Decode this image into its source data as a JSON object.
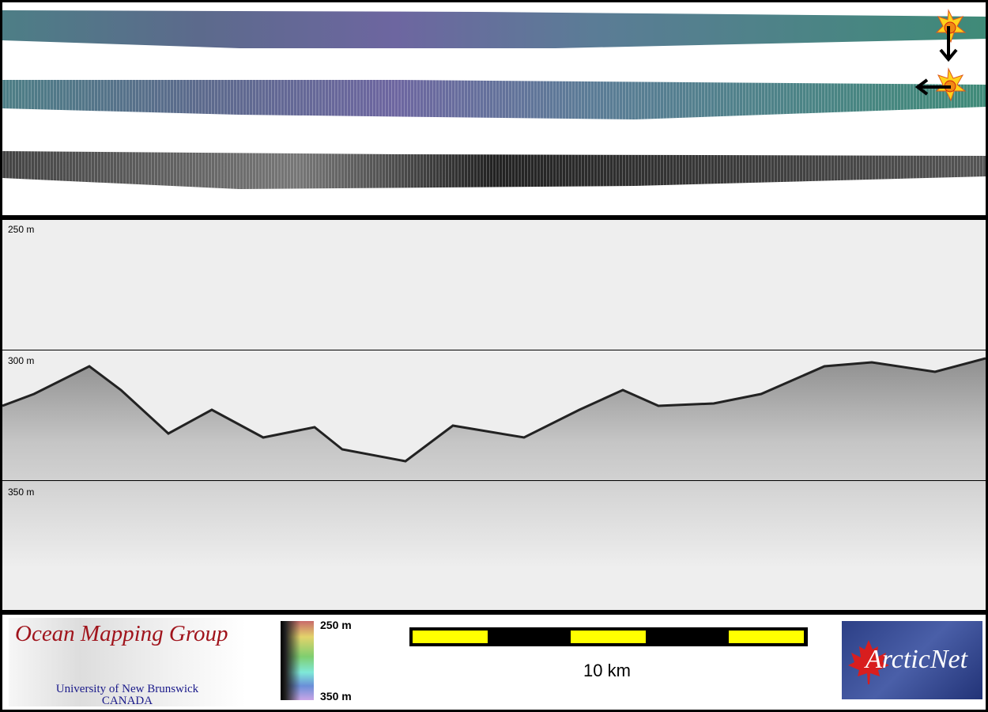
{
  "backscatter_panel": {
    "markers": [
      "sun-marker-start",
      "sun-marker-turn"
    ],
    "colors": {
      "strip_mosaic": "#4f8a7e",
      "strip_mid": "#6f6aa0"
    }
  },
  "profile_panel": {
    "depth_labels": [
      "250 m",
      "300 m",
      "350 m"
    ]
  },
  "footer": {
    "omg_logo": {
      "title": "Ocean Mapping Group",
      "line1": "University of New Brunswick",
      "line2": "CANADA"
    },
    "colorbar": {
      "top_label": "250 m",
      "bottom_label": "350 m"
    },
    "scale_bar": {
      "label": "10 km",
      "color": "#ffff00"
    },
    "arcticnet_logo": {
      "text": "ArcticNet"
    }
  }
}
